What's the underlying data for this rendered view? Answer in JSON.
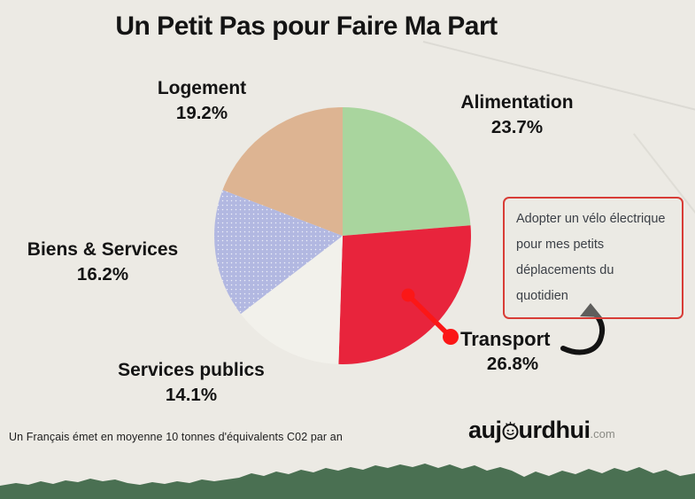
{
  "title": "Un Petit Pas pour Faire Ma Part",
  "chart_data": {
    "type": "pie",
    "title": "Un Petit Pas pour Faire Ma Part",
    "unit": "%",
    "start_angle_deg": 0,
    "direction": "clockwise",
    "slices": [
      {
        "label": "Alimentation",
        "value": 23.7,
        "pct": "23.7%",
        "color": "#a9d59e"
      },
      {
        "label": "Transport",
        "value": 26.8,
        "pct": "26.8%",
        "color": "#e8243c",
        "highlighted": true
      },
      {
        "label": "Services publics",
        "value": 14.1,
        "pct": "14.1%",
        "color": "#f2f1eb"
      },
      {
        "label": "Biens & Services",
        "value": 16.2,
        "pct": "16.2%",
        "color": "#b2b8e1",
        "texture": "dots"
      },
      {
        "label": "Logement",
        "value": 19.2,
        "pct": "19.2%",
        "color": "#ddb492"
      }
    ]
  },
  "callout": {
    "points_to": "Transport",
    "border_color": "#d83c36",
    "lines": [
      "Adopter un vélo électrique",
      "pour mes petits",
      "déplacements du",
      "quotidien"
    ]
  },
  "footnote": "Un Français émet en moyenne 10 tonnes d'équivalents C02 par an",
  "logo": {
    "part1": "auj",
    "part2": "urdhui",
    "suffix": ".com"
  },
  "colors": {
    "paper": "#eceae4",
    "backing_green": "#4a7052",
    "marker_red": "#fb1717",
    "arrow_black": "#131313",
    "text": "#141414"
  }
}
